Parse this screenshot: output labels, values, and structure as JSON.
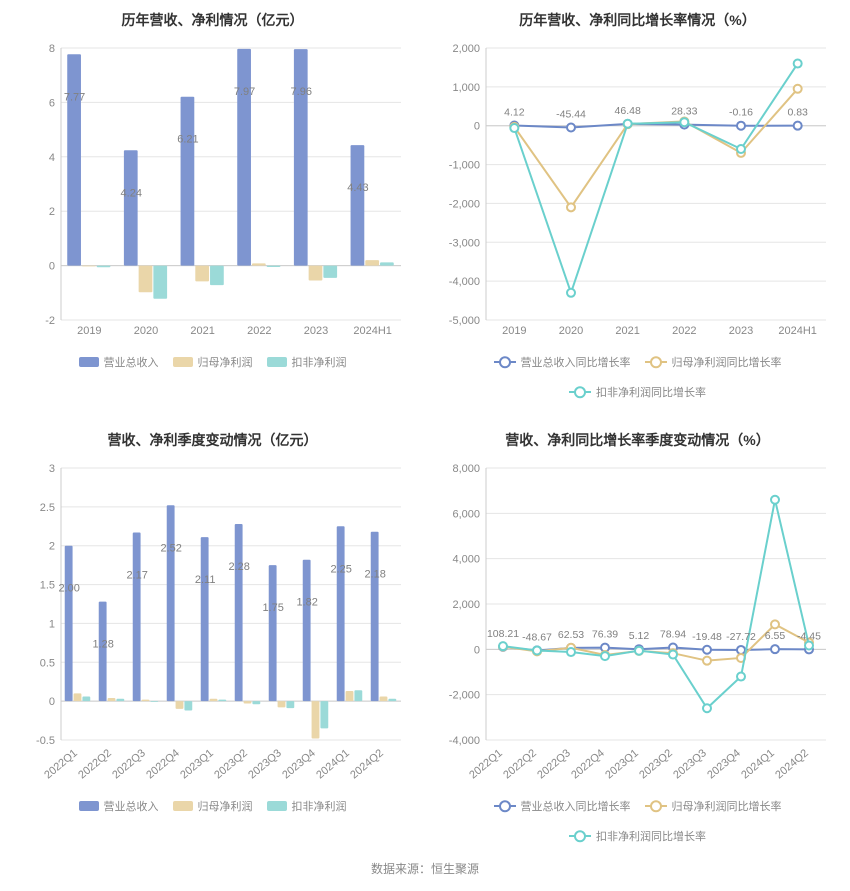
{
  "colors": {
    "bar_blue": "#7e95d0",
    "bar_tan": "#ead6a9",
    "bar_teal": "#9bdad8",
    "line_blue": "#6c88c7",
    "line_tan": "#e0c383",
    "line_teal": "#6ad0cd",
    "axis": "#cccccc",
    "grid": "#e5e5e5",
    "tick_text": "#888888",
    "title": "#333333",
    "bar_label": "#808080"
  },
  "source_label": "数据来源：恒生聚源",
  "charts": {
    "c1": {
      "type": "bar",
      "title": "历年营收、净利情况（亿元）",
      "categories": [
        "2019",
        "2020",
        "2021",
        "2022",
        "2023",
        "2024H1"
      ],
      "series": [
        {
          "name": "营业总收入",
          "color": "#7e95d0",
          "values": [
            7.77,
            4.24,
            6.21,
            7.97,
            7.96,
            4.43
          ],
          "show_labels": true
        },
        {
          "name": "归母净利润",
          "color": "#ead6a9",
          "values": [
            -0.03,
            -0.98,
            -0.58,
            0.08,
            -0.55,
            0.2
          ],
          "show_labels": false
        },
        {
          "name": "扣非净利润",
          "color": "#9bdad8",
          "values": [
            -0.06,
            -1.22,
            -0.72,
            -0.05,
            -0.45,
            0.12
          ],
          "show_labels": false
        }
      ],
      "ylim": [
        -2,
        8
      ],
      "ytick_step": 2,
      "bar_group_width": 0.78,
      "x_label_rotate": 0
    },
    "c2": {
      "type": "line",
      "title": "历年营收、净利同比增长率情况（%）",
      "categories": [
        "2019",
        "2020",
        "2021",
        "2022",
        "2023",
        "2024H1"
      ],
      "series": [
        {
          "name": "营业总收入同比增长率",
          "color": "#6c88c7",
          "values": [
            4.12,
            -45.44,
            46.48,
            28.33,
            -0.16,
            0.83
          ],
          "show_labels": true
        },
        {
          "name": "归母净利润同比增长率",
          "color": "#e0c383",
          "values": [
            -30,
            -2100,
            40,
            110,
            -700,
            950
          ],
          "show_labels": false
        },
        {
          "name": "扣非净利润同比增长率",
          "color": "#6ad0cd",
          "values": [
            -60,
            -4300,
            50,
            90,
            -600,
            1600
          ],
          "show_labels": false
        }
      ],
      "ylim": [
        -5000,
        2000
      ],
      "ytick_step": 1000,
      "x_label_rotate": 0
    },
    "c3": {
      "type": "bar",
      "title": "营收、净利季度变动情况（亿元）",
      "categories": [
        "2022Q1",
        "2022Q2",
        "2022Q3",
        "2022Q4",
        "2023Q1",
        "2023Q2",
        "2023Q3",
        "2023Q4",
        "2024Q1",
        "2024Q2"
      ],
      "series": [
        {
          "name": "营业总收入",
          "color": "#7e95d0",
          "values": [
            2.0,
            1.28,
            2.17,
            2.52,
            2.11,
            2.28,
            1.75,
            1.82,
            2.25,
            2.18
          ],
          "show_labels": true
        },
        {
          "name": "归母净利润",
          "color": "#ead6a9",
          "values": [
            0.1,
            0.04,
            0.02,
            -0.1,
            0.03,
            -0.03,
            -0.08,
            -0.48,
            0.13,
            0.06
          ],
          "show_labels": false
        },
        {
          "name": "扣非净利润",
          "color": "#9bdad8",
          "values": [
            0.06,
            0.03,
            -0.01,
            -0.12,
            0.02,
            -0.04,
            -0.09,
            -0.35,
            0.14,
            0.03
          ],
          "show_labels": false
        }
      ],
      "ylim": [
        -0.5,
        3
      ],
      "ytick_step": 0.5,
      "bar_group_width": 0.78,
      "x_label_rotate": -40
    },
    "c4": {
      "type": "line",
      "title": "营收、净利同比增长率季度变动情况（%）",
      "categories": [
        "2022Q1",
        "2022Q2",
        "2022Q3",
        "2022Q4",
        "2023Q1",
        "2023Q2",
        "2023Q3",
        "2023Q4",
        "2024Q1",
        "2024Q2"
      ],
      "series": [
        {
          "name": "营业总收入同比增长率",
          "color": "#6c88c7",
          "values": [
            108.21,
            -48.67,
            62.53,
            76.39,
            5.12,
            78.94,
            -19.48,
            -27.72,
            6.55,
            -4.45
          ],
          "show_labels": true
        },
        {
          "name": "归母净利润同比增长率",
          "color": "#e0c383",
          "values": [
            120,
            -90,
            70,
            -250,
            -70,
            -170,
            -500,
            -380,
            1100,
            300
          ],
          "show_labels": false
        },
        {
          "name": "扣非净利润同比增长率",
          "color": "#6ad0cd",
          "values": [
            140,
            -50,
            -120,
            -300,
            -60,
            -230,
            -2600,
            -1200,
            6600,
            170
          ],
          "show_labels": false
        }
      ],
      "ylim": [
        -4000,
        8000
      ],
      "ytick_step": 2000,
      "x_label_rotate": -40
    }
  }
}
